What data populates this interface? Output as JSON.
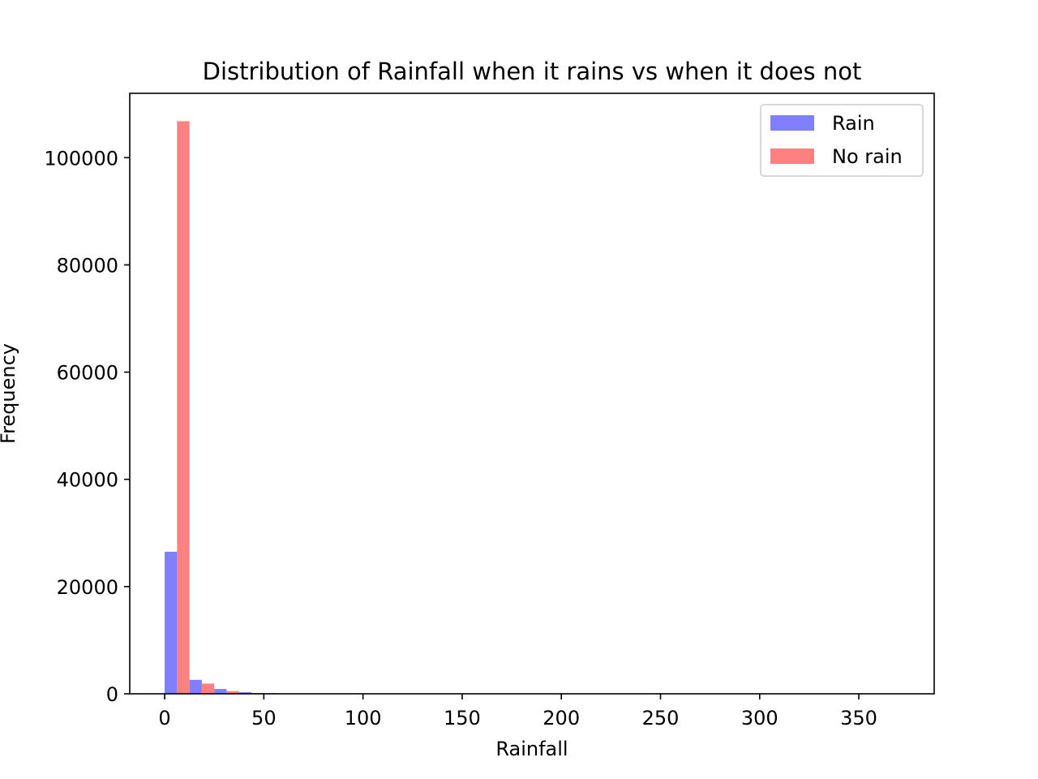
{
  "chart_data": {
    "type": "bar",
    "title": "Distribution of Rainfall when it rains vs when it does not",
    "xlabel": "Rainfall",
    "ylabel": "Frequency",
    "xlim": [
      -17.6,
      388
    ],
    "ylim": [
      0,
      112000
    ],
    "xticks": [
      0,
      50,
      100,
      150,
      200,
      250,
      300,
      350
    ],
    "yticks": [
      0,
      20000,
      40000,
      60000,
      80000,
      100000
    ],
    "bin_width": 12.5,
    "bin_start": 0,
    "legend_position": "top-right",
    "series": [
      {
        "name": "Rain",
        "color": "#8080ff",
        "values": [
          26500,
          2600,
          900,
          300,
          120,
          60,
          30,
          20,
          10,
          8,
          5,
          4,
          3,
          2,
          2,
          1,
          1,
          1,
          1,
          1,
          1,
          1,
          0,
          0,
          0,
          0,
          0,
          0,
          0,
          1
        ]
      },
      {
        "name": "No rain",
        "color": "#ff8080",
        "values": [
          106800,
          1900,
          500,
          150,
          50,
          20,
          10,
          5,
          3,
          2,
          1,
          1,
          1,
          0,
          0,
          0,
          0,
          0,
          0,
          0,
          0,
          0,
          0,
          0,
          0,
          0,
          0,
          0,
          0,
          0
        ]
      }
    ]
  }
}
